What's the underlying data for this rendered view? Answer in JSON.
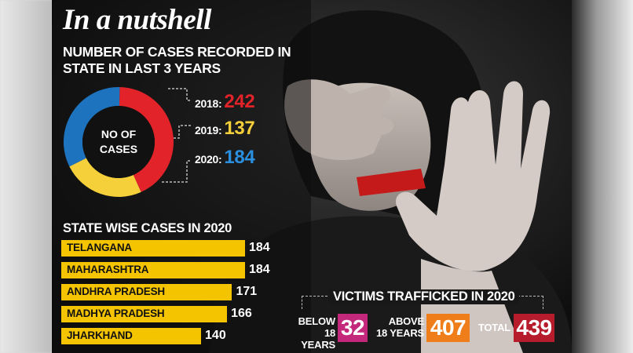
{
  "header": {
    "title": "In a nutshell",
    "subtitle": "NUMBER OF CASES RECORDED IN STATE IN LAST 3 YEARS"
  },
  "donut": {
    "center_label": "NO OF CASES",
    "colors": {
      "2018": "#e3232a",
      "2019": "#f5d03a",
      "2020": "#1e73be"
    }
  },
  "states_section": {
    "title": "STATE WISE CASES IN 2020"
  },
  "victims": {
    "title": "VICTIMS TRAFFICKED IN 2020",
    "below_label": "BELOW 18 YEARS",
    "below_value": "32",
    "below_color": "#c4287a",
    "above_label": "ABOVE 18 YEARS",
    "above_value": "407",
    "above_color": "#ef7d1a",
    "total_label": "TOTAL",
    "total_value": "439",
    "total_color": "#b71c2c"
  },
  "chart_data": [
    {
      "type": "pie",
      "title": "NUMBER OF CASES RECORDED IN STATE IN LAST 3 YEARS",
      "categories": [
        "2018:",
        "2019:",
        "2020:"
      ],
      "values": [
        242,
        137,
        184
      ],
      "colors": [
        "#e3232a",
        "#f5d03a",
        "#1e73be"
      ]
    },
    {
      "type": "bar",
      "title": "STATE WISE CASES IN 2020",
      "categories": [
        "TELANGANA",
        "MAHARASHTRA",
        "ANDHRA PRADESH",
        "MADHYA PRADESH",
        "JHARKHAND"
      ],
      "values": [
        184,
        184,
        171,
        166,
        140
      ],
      "color": "#f5c400"
    }
  ]
}
